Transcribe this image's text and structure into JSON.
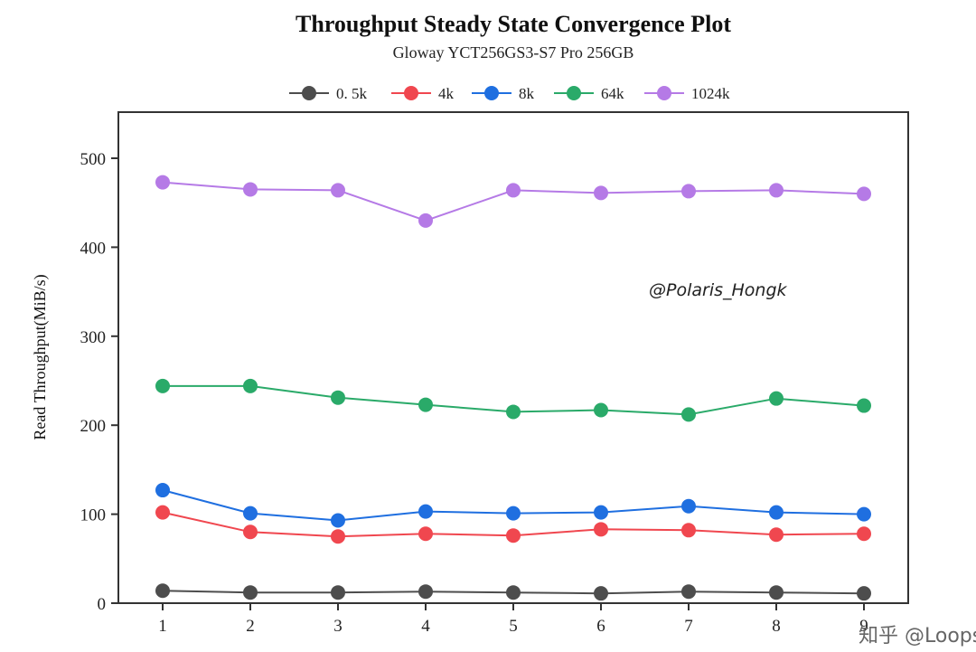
{
  "chart_data": {
    "type": "line",
    "title": "Throughput Steady State Convergence Plot",
    "subtitle": "Gloway YCT256GS3-S7 Pro 256GB",
    "xlabel": "",
    "ylabel": "Read Throughput(MiB/s)",
    "x": [
      1,
      2,
      3,
      4,
      5,
      6,
      7,
      8,
      9
    ],
    "x_tick_labels": [
      "1",
      "2",
      "3",
      "4",
      "5",
      "6",
      "7",
      "8",
      "9"
    ],
    "ylim": [
      0,
      550
    ],
    "y_ticks": [
      0,
      100,
      200,
      300,
      400,
      500
    ],
    "y_tick_labels": [
      "0",
      "100",
      "200",
      "300",
      "400",
      "500"
    ],
    "grid": false,
    "legend_position": "top",
    "series": [
      {
        "name": "0. 5k",
        "color": "#4d4d4d",
        "values": [
          14,
          12,
          12,
          13,
          12,
          11,
          13,
          12,
          11
        ]
      },
      {
        "name": "4k",
        "color": "#f0474f",
        "values": [
          102,
          80,
          75,
          78,
          76,
          83,
          82,
          77,
          78
        ]
      },
      {
        "name": "8k",
        "color": "#1f6fe0",
        "values": [
          127,
          101,
          93,
          103,
          101,
          102,
          109,
          102,
          100
        ]
      },
      {
        "name": "64k",
        "color": "#2aaa69",
        "values": [
          244,
          244,
          231,
          223,
          215,
          217,
          212,
          230,
          222
        ]
      },
      {
        "name": "1024k",
        "color": "#b57ae6",
        "values": [
          473,
          465,
          464,
          430,
          464,
          461,
          463,
          464,
          460
        ]
      }
    ],
    "annotations": [
      "@Polaris_Hongk"
    ],
    "footer_text": "知乎 @Loops"
  }
}
